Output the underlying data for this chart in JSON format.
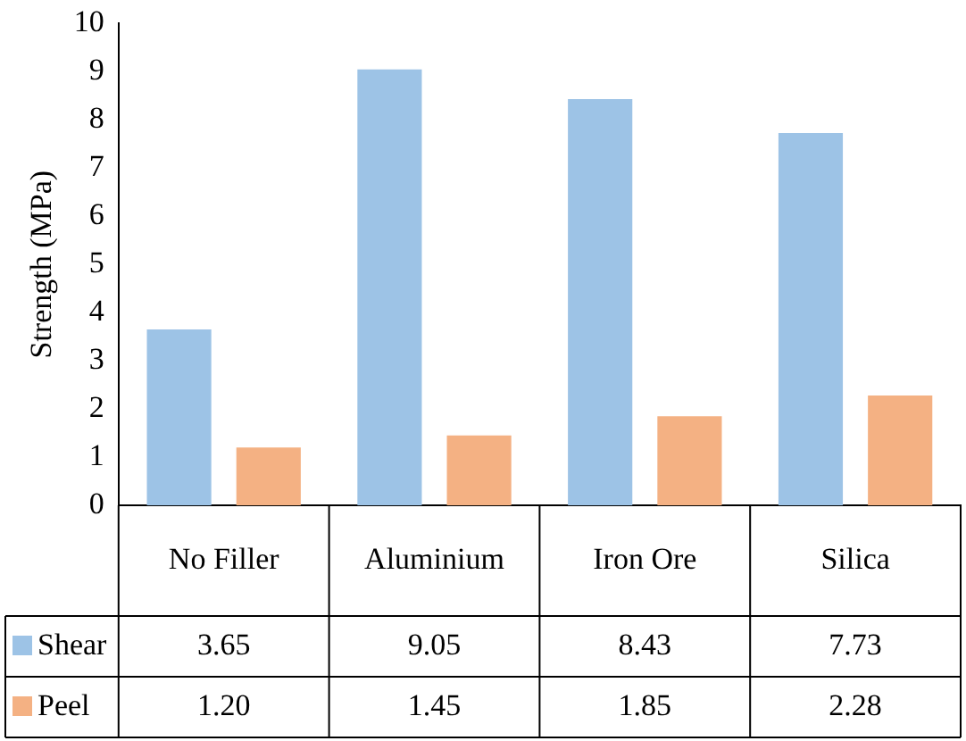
{
  "chart_data": {
    "type": "bar",
    "ylabel": "Strength (MPa)",
    "categories": [
      "No Filler",
      "Aluminium",
      "Iron Ore",
      "Silica"
    ],
    "series": [
      {
        "name": "Shear",
        "color": "#9dc3e6",
        "values": [
          3.65,
          9.05,
          8.43,
          7.73
        ],
        "value_labels": [
          "3.65",
          "9.05",
          "8.43",
          "7.73"
        ]
      },
      {
        "name": "Peel",
        "color": "#f4b183",
        "values": [
          1.2,
          1.45,
          1.85,
          2.28
        ],
        "value_labels": [
          "1.20",
          "1.45",
          "1.85",
          "2.28"
        ]
      }
    ],
    "ylim": [
      0,
      10
    ],
    "yticks": [
      0,
      1,
      2,
      3,
      4,
      5,
      6,
      7,
      8,
      9,
      10
    ],
    "grid": false,
    "legend": "bottom"
  }
}
